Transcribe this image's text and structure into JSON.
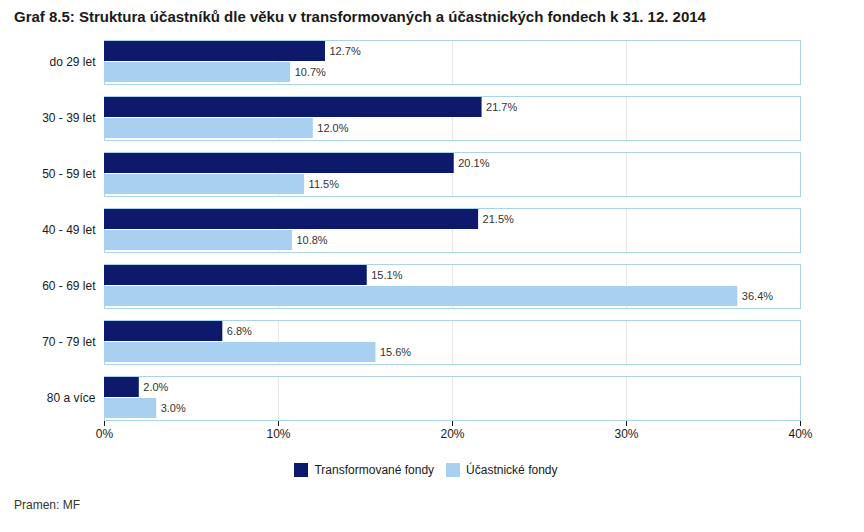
{
  "chart_data": {
    "type": "bar",
    "orientation": "horizontal",
    "title": "Graf 8.5: Struktura účastníků dle věku v transformovaných a účastnických fondech k 31. 12. 2014",
    "caption": "Pramen: MF",
    "categories": [
      "80 a více",
      "70 - 79 let",
      "60 - 69 let",
      "40 - 49 let",
      "50 - 59 let",
      "30 - 39 let",
      "do 29 let"
    ],
    "series": [
      {
        "name": "Transformované fondy",
        "color": "#0d1a6b",
        "values": [
          2.0,
          6.8,
          15.1,
          21.5,
          20.1,
          21.7,
          12.7
        ],
        "value_labels": [
          "2.0%",
          "6.8%",
          "15.1%",
          "21.5%",
          "20.1%",
          "21.7%",
          "12.7%"
        ]
      },
      {
        "name": "Účastnické fondy",
        "color": "#a8d0f0",
        "values": [
          3.0,
          15.6,
          36.4,
          10.8,
          11.5,
          12.0,
          10.7
        ],
        "value_labels": [
          "3.0%",
          "15.6%",
          "36.4%",
          "10.8%",
          "11.5%",
          "12.0%",
          "10.7%"
        ]
      }
    ],
    "xlim": [
      0,
      40
    ],
    "xticks": [
      {
        "value": 0,
        "label": "0%"
      },
      {
        "value": 10,
        "label": "10%"
      },
      {
        "value": 20,
        "label": "20%"
      },
      {
        "value": 30,
        "label": "30%"
      },
      {
        "value": 40,
        "label": "40%"
      }
    ],
    "grid": true,
    "legend": "bottom",
    "data_labels": true
  }
}
